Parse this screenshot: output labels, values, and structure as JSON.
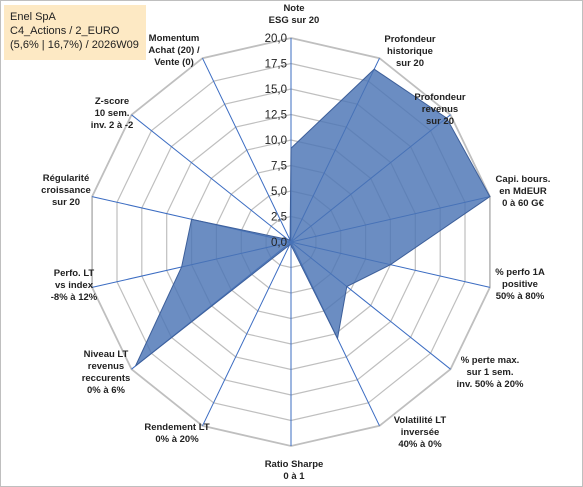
{
  "info": {
    "line1": "Enel SpA",
    "line2": "C4_Actions / 2_EURO",
    "line3": "(5,6% | 16,7%) / 2026W09"
  },
  "chart_data": {
    "type": "radar",
    "range": [
      0,
      20
    ],
    "ticks": [
      "0,0",
      "2,5",
      "5,0",
      "7,5",
      "10,0",
      "12,5",
      "15,0",
      "17,5",
      "20,0"
    ],
    "axes": [
      {
        "label": [
          "Note",
          "ESG sur 20"
        ],
        "value": 9.2
      },
      {
        "label": [
          "Profondeur",
          "historique",
          "sur 20"
        ],
        "value": 18.8
      },
      {
        "label": [
          "Profondeur",
          "revenus",
          "sur 20"
        ],
        "value": 19.5
      },
      {
        "label": [
          "Capi. bours.",
          "en MdEUR",
          "0 à 60 G€"
        ],
        "value": 20.0
      },
      {
        "label": [
          "% perfo 1A",
          "positive",
          "50% à 80%"
        ],
        "value": 10.0
      },
      {
        "label": [
          "% perte max.",
          "sur 1 sem.",
          "inv. 50% à 20%"
        ],
        "value": 7.0
      },
      {
        "label": [
          "Volatilité LT",
          "inversée",
          "40% à 0%"
        ],
        "value": 10.5
      },
      {
        "label": [
          "Ratio Sharpe",
          "0 à 1"
        ],
        "value": 0.3
      },
      {
        "label": [
          "Rendement LT",
          "0% à 20%"
        ],
        "value": 0.3
      },
      {
        "label": [
          "Niveau LT",
          "revenus",
          "reccurents",
          "0% à 6%"
        ],
        "value": 19.5
      },
      {
        "label": [
          "Perfo. LT",
          "vs index",
          "-8% à 12%"
        ],
        "value": 11.0
      },
      {
        "label": [
          "Régularité",
          "croissance",
          "sur 20"
        ],
        "value": 10.0
      },
      {
        "label": [
          "Z-score",
          "10 sem.",
          "inv. 2 à -2"
        ],
        "value": 0.4
      },
      {
        "label": [
          "Momentum",
          "Achat (20) /",
          "Vente (0)"
        ],
        "value": 0.2
      }
    ],
    "colors": {
      "fill": "#4a74b4",
      "stroke": "#3d5f9a",
      "axis": "#3b6cc2",
      "grid": "#bfbfbf"
    }
  }
}
